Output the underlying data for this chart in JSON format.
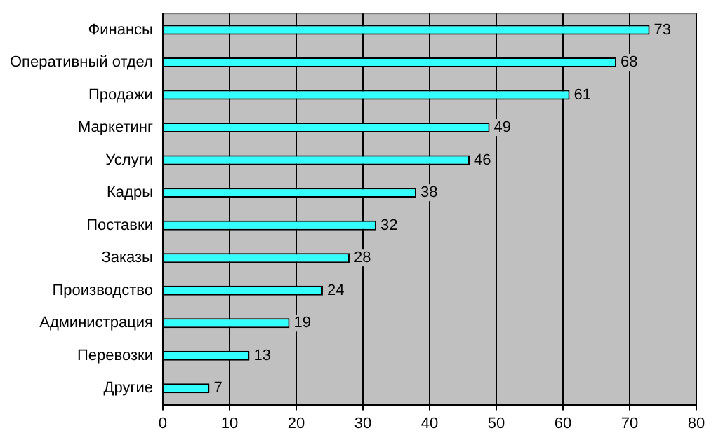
{
  "chart_data": {
    "type": "bar",
    "orientation": "horizontal",
    "categories": [
      "Финансы",
      "Оперативный отдел",
      "Продажи",
      "Маркетинг",
      "Услуги",
      "Кадры",
      "Поставки",
      "Заказы",
      "Производство",
      "Администрация",
      "Перевозки",
      "Другие"
    ],
    "values": [
      73,
      68,
      61,
      49,
      46,
      38,
      32,
      28,
      24,
      19,
      13,
      7
    ],
    "color": "#33ffff",
    "xlim": [
      0,
      80
    ],
    "xticks": [
      0,
      10,
      20,
      30,
      40,
      50,
      60,
      70,
      80
    ],
    "grid": "x",
    "data_labels": true,
    "legend": false
  }
}
